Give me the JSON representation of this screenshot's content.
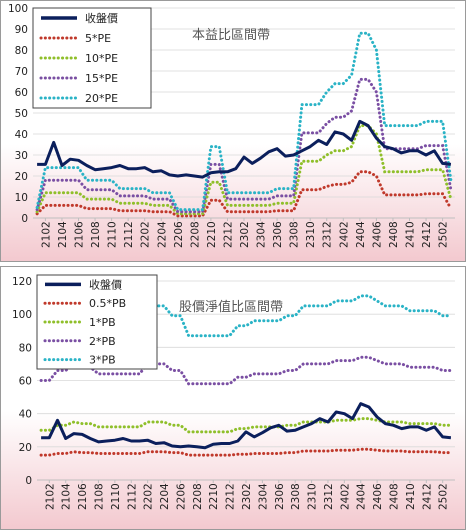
{
  "colors": {
    "close": "#0b1f5c",
    "s1": "#c0392b",
    "s2": "#8fbf2a",
    "s3": "#7a4fa3",
    "s4": "#2ab3c6",
    "bg_top": "#ffffff",
    "bg_bottom": "#f3c9cf",
    "grid": "#d9d9d9"
  },
  "chart_data": [
    {
      "type": "line",
      "title": "本益比區間帶",
      "x": [
        "2101",
        "2102",
        "2103",
        "2104",
        "2105",
        "2106",
        "2107",
        "2108",
        "2109",
        "2110",
        "2111",
        "2112",
        "2201",
        "2202",
        "2203",
        "2204",
        "2205",
        "2206",
        "2207",
        "2208",
        "2209",
        "2210",
        "2211",
        "2212",
        "2301",
        "2302",
        "2303",
        "2304",
        "2305",
        "2306",
        "2307",
        "2308",
        "2309",
        "2310",
        "2311",
        "2312",
        "2401",
        "2402",
        "2403",
        "2404",
        "2405",
        "2406",
        "2407",
        "2408",
        "2409",
        "2410",
        "2411",
        "2412",
        "2501",
        "2502",
        "2503"
      ],
      "xticks": [
        "2102",
        "2104",
        "2106",
        "2108",
        "2110",
        "2112",
        "2202",
        "2204",
        "2206",
        "2208",
        "2210",
        "2212",
        "2302",
        "2304",
        "2306",
        "2308",
        "2310",
        "2312",
        "2402",
        "2404",
        "2406",
        "2408",
        "2410",
        "2412",
        "2502"
      ],
      "ylim": [
        0,
        100
      ],
      "yticks": [
        0,
        10,
        20,
        30,
        40,
        50,
        60,
        70,
        80,
        90,
        100
      ],
      "grid": true,
      "legend": "top-left",
      "series": [
        {
          "name": "收盤價",
          "style": "solid",
          "color_key": "close",
          "values": [
            25.5,
            25.5,
            36,
            25,
            28,
            27.5,
            25,
            23,
            23.5,
            24,
            25,
            23.5,
            23.5,
            24,
            22,
            22.5,
            20.5,
            20,
            20.5,
            20,
            19.5,
            21.5,
            22,
            22,
            23.5,
            29,
            26,
            28.5,
            31.5,
            33,
            29.5,
            30,
            32,
            34,
            37,
            35,
            41,
            40,
            37,
            46,
            44,
            38,
            34,
            33,
            31,
            32,
            32,
            30,
            32,
            26,
            25.5
          ]
        },
        {
          "name": "5*PE",
          "style": "dotted",
          "color_key": "s1",
          "values": [
            2,
            6,
            6,
            6,
            6,
            6,
            4.5,
            4.5,
            4.5,
            4.5,
            3.5,
            3.5,
            3.5,
            3.5,
            3,
            3,
            3,
            1,
            1,
            1,
            1,
            8.5,
            8.5,
            3,
            3,
            3,
            3,
            3,
            3,
            3.5,
            3.5,
            3.5,
            13.5,
            13.5,
            13.5,
            15,
            16,
            16,
            17,
            22,
            22,
            20,
            11,
            11,
            11,
            11,
            11,
            11.5,
            11.5,
            11.5,
            4.5
          ]
        },
        {
          "name": "10*PE",
          "style": "dotted",
          "color_key": "s2",
          "values": [
            3,
            12,
            12,
            12,
            12,
            12,
            9,
            9,
            9,
            9,
            7,
            7,
            7,
            7,
            6,
            6,
            6,
            2,
            2,
            2,
            2,
            17,
            17,
            6,
            6,
            6,
            6,
            6,
            6,
            7,
            7,
            7,
            27,
            27,
            27,
            30,
            32,
            32,
            34,
            44,
            44,
            40,
            22,
            22,
            22,
            22,
            22,
            23,
            23,
            23,
            9
          ]
        },
        {
          "name": "15*PE",
          "style": "dotted",
          "color_key": "s3",
          "values": [
            4,
            18,
            18,
            18,
            18,
            18,
            13.5,
            13.5,
            13.5,
            13.5,
            10.5,
            10.5,
            10.5,
            10.5,
            9,
            9,
            9,
            3,
            3,
            3,
            3,
            25.5,
            25.5,
            9,
            9,
            9,
            9,
            9,
            9,
            10.5,
            10.5,
            10.5,
            40.5,
            40.5,
            40.5,
            45,
            48,
            48,
            51,
            66,
            66,
            60,
            33,
            33,
            33,
            33,
            33,
            34.5,
            34.5,
            34.5,
            13.5
          ]
        },
        {
          "name": "20*PE",
          "style": "dotted",
          "color_key": "s4",
          "values": [
            5,
            24,
            24,
            24,
            24,
            24,
            18,
            18,
            18,
            18,
            14,
            14,
            14,
            14,
            12,
            12,
            12,
            4,
            4,
            4,
            4,
            34,
            34,
            12,
            12,
            12,
            12,
            12,
            12,
            14,
            14,
            14,
            54,
            54,
            54,
            60,
            64,
            64,
            68,
            88,
            88,
            80,
            44,
            44,
            44,
            44,
            44,
            46,
            46,
            46,
            18
          ]
        }
      ]
    },
    {
      "type": "line",
      "title": "股價淨值比區間帶",
      "x": [
        "2101",
        "2102",
        "2103",
        "2104",
        "2105",
        "2106",
        "2107",
        "2108",
        "2109",
        "2110",
        "2111",
        "2112",
        "2201",
        "2202",
        "2203",
        "2204",
        "2205",
        "2206",
        "2207",
        "2208",
        "2209",
        "2210",
        "2211",
        "2212",
        "2301",
        "2302",
        "2303",
        "2304",
        "2305",
        "2306",
        "2307",
        "2308",
        "2309",
        "2310",
        "2311",
        "2312",
        "2401",
        "2402",
        "2403",
        "2404",
        "2405",
        "2406",
        "2407",
        "2408",
        "2409",
        "2410",
        "2411",
        "2412",
        "2501",
        "2502",
        "2503"
      ],
      "xticks": [
        "2102",
        "2104",
        "2106",
        "2108",
        "2110",
        "2112",
        "2202",
        "2204",
        "2206",
        "2208",
        "2210",
        "2212",
        "2302",
        "2304",
        "2306",
        "2308",
        "2310",
        "2312",
        "2402",
        "2404",
        "2406",
        "2408",
        "2410",
        "2412",
        "2502"
      ],
      "ylim": [
        0,
        120
      ],
      "yticks": [
        0,
        20,
        40,
        60,
        80,
        100,
        120
      ],
      "grid": true,
      "legend": "top-left",
      "series": [
        {
          "name": "收盤價",
          "style": "solid",
          "color_key": "close",
          "values": [
            25.5,
            25.5,
            36,
            25,
            28,
            27.5,
            25,
            23,
            23.5,
            24,
            25,
            23.5,
            23.5,
            24,
            22,
            22.5,
            20.5,
            20,
            20.5,
            20,
            19.5,
            21.5,
            22,
            22,
            23.5,
            29,
            26,
            28.5,
            31.5,
            33,
            29.5,
            30,
            32,
            34,
            37,
            35,
            41,
            40,
            37,
            46,
            44,
            38,
            34,
            33,
            31,
            32,
            32,
            30,
            32,
            26,
            25.5
          ]
        },
        {
          "name": "0.5*PB",
          "style": "dotted",
          "color_key": "s1",
          "values": [
            15,
            15,
            16,
            16,
            17,
            16.5,
            16.5,
            16,
            16,
            16,
            16,
            16,
            16,
            17,
            17,
            17,
            16.5,
            16.5,
            15,
            15,
            15,
            15,
            15,
            15,
            15.5,
            15.5,
            16,
            16,
            16,
            16,
            16.5,
            16.5,
            17.5,
            17.5,
            17.5,
            17.5,
            18,
            18,
            18,
            18.5,
            18.5,
            18,
            17.5,
            17.5,
            17.5,
            17,
            17,
            17,
            17,
            16.5,
            16.5
          ]
        },
        {
          "name": "1*PB",
          "style": "dotted",
          "color_key": "s2",
          "values": [
            30,
            30,
            33,
            33,
            35,
            34,
            34,
            32,
            32,
            32,
            32,
            32,
            32,
            35,
            35,
            35,
            33,
            33,
            29,
            29,
            29,
            29,
            29,
            29,
            31,
            31,
            32,
            32,
            32,
            32,
            33,
            33,
            35,
            35,
            35,
            35,
            36,
            36,
            36,
            37,
            37,
            36,
            35,
            35,
            35,
            34,
            34,
            34,
            34,
            33,
            33
          ]
        },
        {
          "name": "2*PB",
          "style": "dotted",
          "color_key": "s3",
          "values": [
            60,
            60,
            66,
            66,
            70,
            68,
            68,
            64,
            64,
            64,
            64,
            64,
            64,
            70,
            70,
            70,
            66,
            66,
            58,
            58,
            58,
            58,
            58,
            58,
            62,
            62,
            64,
            64,
            64,
            64,
            66,
            66,
            70,
            70,
            70,
            70,
            72,
            72,
            72,
            74,
            74,
            72,
            70,
            70,
            70,
            68,
            68,
            68,
            68,
            66,
            66
          ]
        },
        {
          "name": "3*PB",
          "style": "dotted",
          "color_key": "s4",
          "values": [
            90,
            90,
            99,
            99,
            105,
            102,
            102,
            96,
            96,
            96,
            96,
            96,
            96,
            105,
            105,
            105,
            99,
            99,
            87,
            87,
            87,
            87,
            87,
            87,
            93,
            93,
            96,
            96,
            96,
            96,
            99,
            99,
            105,
            105,
            105,
            105,
            108,
            108,
            108,
            111,
            111,
            108,
            105,
            105,
            105,
            102,
            102,
            102,
            102,
            99,
            99
          ]
        }
      ]
    }
  ]
}
